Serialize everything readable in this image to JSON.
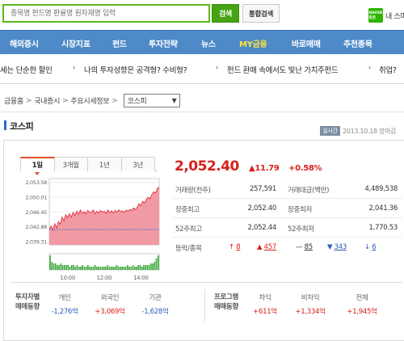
{
  "search": {
    "placeholder": "종목명 펀드명 환율명 원자재명 입력",
    "button": "검색",
    "unified_button": "통합검색"
  },
  "header": {
    "logo_text": "NAVER 증권",
    "my_stock": "내 스마"
  },
  "nav": {
    "items": [
      "해외증시",
      "시장지표",
      "펀드",
      "투자전략",
      "뉴스",
      "MY금융",
      "바로매매",
      "추천종목"
    ],
    "active": "MY금융"
  },
  "ticker": {
    "items": [
      "세는 단순한 할인",
      "나의 투자성향은 공격형? 수비형?",
      "펀드 환매 속에서도 빛난 가치주펀드",
      "취업?"
    ],
    "arrow": "›"
  },
  "breadcrumb": {
    "items": [
      "금융홈",
      "국내증시",
      "주요시세정보"
    ],
    "separator": ">",
    "select_value": "코스피",
    "select_caret": "▼"
  },
  "page": {
    "title": "코스피",
    "badge": "실시간",
    "updated": "2013.10.18 장마감"
  },
  "tabs": [
    "1일",
    "3개월",
    "1년",
    "3년"
  ],
  "active_tab": "1일",
  "quote": {
    "price": "2,052.40",
    "change": "▲11.79",
    "change_rate": "+0.58%"
  },
  "stats": {
    "rows": [
      {
        "l1": "거래량(천주)",
        "v1": "257,591",
        "l2": "거래대금(백만)",
        "v2": "4,489,538"
      },
      {
        "l1": "장중최고",
        "v1": "2,052.40",
        "l2": "장중최저",
        "v2": "2,041.36"
      },
      {
        "l1": "52주최고",
        "v1": "2,052.44",
        "l2": "52주최저",
        "v2": "1,770.53"
      }
    ],
    "breadth": {
      "label": "등락/종목",
      "upper_limit": "8",
      "up": "457",
      "flat": "85",
      "down": "343",
      "lower_limit": "6"
    }
  },
  "investors": {
    "label": [
      "투자자별",
      "매매동향"
    ],
    "columns": [
      {
        "name": "개인",
        "value": "-1,276억"
      },
      {
        "name": "외국인",
        "value": "+3,069억"
      },
      {
        "name": "기관",
        "value": "-1,628억"
      }
    ]
  },
  "program": {
    "label": [
      "프로그램",
      "매매동향"
    ],
    "columns": [
      {
        "name": "차익",
        "value": "+611억"
      },
      {
        "name": "비차익",
        "value": "+1,334억"
      },
      {
        "name": "전체",
        "value": "+1,945억"
      }
    ]
  },
  "chart_data": {
    "type": "area",
    "title": "",
    "ylim": [
      2038.5,
      2054.5
    ],
    "y_ticks": [
      "2,053.58",
      "2,050.01",
      "2,046.45",
      "2,042.88",
      "2,039.31"
    ],
    "y_tick_values": [
      2053.58,
      2050.01,
      2046.45,
      2042.88,
      2039.31
    ],
    "x_ticks": [
      "10:00",
      "12:00",
      "14:00"
    ],
    "x_tick_minutes": [
      60,
      180,
      300
    ],
    "minutes": [
      0,
      6,
      12,
      18,
      24,
      30,
      36,
      42,
      48,
      54,
      60,
      66,
      72,
      78,
      84,
      90,
      96,
      102,
      108,
      114,
      120,
      126,
      132,
      138,
      144,
      150,
      156,
      162,
      168,
      174,
      180,
      186,
      192,
      198,
      204,
      210,
      216,
      222,
      228,
      234,
      240,
      246,
      252,
      258,
      264,
      270,
      276,
      282,
      288,
      294,
      300,
      306,
      312,
      318,
      324,
      330,
      336,
      342,
      348,
      354,
      360
    ],
    "values": [
      2042.2,
      2043.0,
      2042.0,
      2043.6,
      2042.6,
      2044.1,
      2043.5,
      2045.2,
      2044.3,
      2045.8,
      2045.0,
      2046.0,
      2045.2,
      2046.3,
      2045.6,
      2046.6,
      2045.9,
      2046.9,
      2046.1,
      2046.5,
      2046.0,
      2046.8,
      2046.3,
      2046.4,
      2046.9,
      2046.0,
      2046.6,
      2046.2,
      2046.8,
      2046.4,
      2046.6,
      2046.1,
      2046.9,
      2046.3,
      2046.7,
      2046.2,
      2046.8,
      2046.4,
      2046.9,
      2046.5,
      2046.7,
      2046.3,
      2046.9,
      2046.6,
      2047.0,
      2046.8,
      2047.4,
      2047.0,
      2047.6,
      2048.4,
      2048.0,
      2049.0,
      2048.6,
      2049.5,
      2050.0,
      2049.6,
      2050.6,
      2051.3,
      2051.0,
      2052.1,
      2052.4
    ],
    "volume": [
      9,
      5,
      4,
      4,
      3,
      3,
      4,
      3,
      3,
      3,
      3,
      2,
      3,
      3,
      2,
      3,
      2,
      2,
      3,
      2,
      2,
      3,
      2,
      2,
      2,
      3,
      2,
      2,
      2,
      2,
      2,
      2,
      3,
      2,
      2,
      2,
      2,
      3,
      2,
      2,
      2,
      2,
      2,
      3,
      2,
      2,
      3,
      2,
      2,
      3,
      3,
      2,
      3,
      3,
      3,
      3,
      4,
      4,
      5,
      7,
      9
    ],
    "fill_color": "#f29aa4",
    "line_color": "#e4394a",
    "volume_color": "#3aa83a",
    "baseline_color": "#4a6fd6"
  },
  "colors": {
    "accent": "#4e89c8",
    "up": "#d6211b",
    "down": "#2a5db8",
    "search_border": "#5cb819"
  }
}
